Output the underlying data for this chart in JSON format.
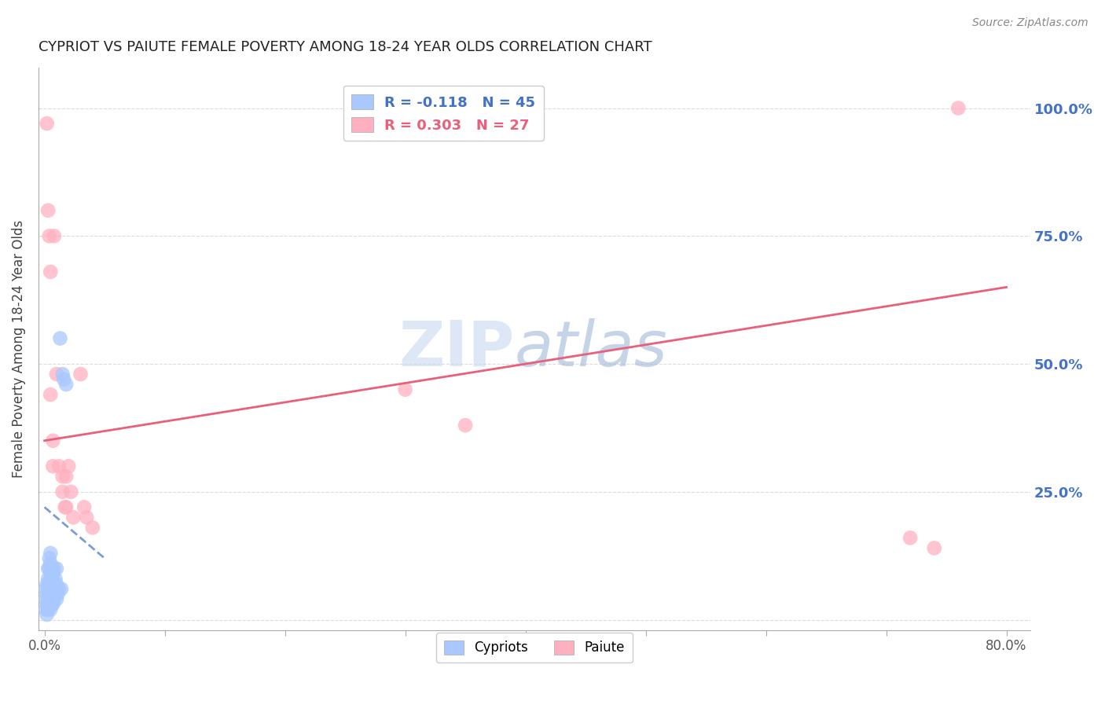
{
  "title": "CYPRIOT VS PAIUTE FEMALE POVERTY AMONG 18-24 YEAR OLDS CORRELATION CHART",
  "source": "Source: ZipAtlas.com",
  "ylabel": "Female Poverty Among 18-24 Year Olds",
  "cypriot_R": -0.118,
  "cypriot_N": 45,
  "paiute_R": 0.303,
  "paiute_N": 27,
  "cypriot_color": "#A8C8FF",
  "paiute_color": "#FFB0C0",
  "cypriot_line_color": "#4472C4",
  "paiute_line_color": "#E8607A",
  "watermark_zip": "ZIP",
  "watermark_atlas": "atlas",
  "background_color": "#FFFFFF",
  "grid_color": "#CCCCCC",
  "legend_label_cypriot": "Cypriots",
  "legend_label_paiute": "Paiute",
  "cypriot_x": [
    0.001,
    0.001,
    0.001,
    0.002,
    0.002,
    0.002,
    0.002,
    0.003,
    0.003,
    0.003,
    0.003,
    0.003,
    0.004,
    0.004,
    0.004,
    0.004,
    0.004,
    0.005,
    0.005,
    0.005,
    0.005,
    0.005,
    0.005,
    0.006,
    0.006,
    0.006,
    0.006,
    0.007,
    0.007,
    0.007,
    0.008,
    0.008,
    0.008,
    0.009,
    0.009,
    0.01,
    0.01,
    0.01,
    0.011,
    0.012,
    0.013,
    0.014,
    0.015,
    0.016,
    0.018
  ],
  "cypriot_y": [
    0.02,
    0.04,
    0.06,
    0.01,
    0.03,
    0.05,
    0.07,
    0.02,
    0.04,
    0.06,
    0.08,
    0.1,
    0.03,
    0.05,
    0.07,
    0.1,
    0.12,
    0.02,
    0.04,
    0.06,
    0.08,
    0.11,
    0.13,
    0.03,
    0.05,
    0.08,
    0.1,
    0.03,
    0.06,
    0.09,
    0.04,
    0.07,
    0.1,
    0.05,
    0.08,
    0.04,
    0.07,
    0.1,
    0.05,
    0.06,
    0.55,
    0.06,
    0.48,
    0.47,
    0.46
  ],
  "paiute_x": [
    0.002,
    0.003,
    0.004,
    0.005,
    0.005,
    0.007,
    0.007,
    0.008,
    0.01,
    0.012,
    0.015,
    0.015,
    0.017,
    0.018,
    0.018,
    0.02,
    0.022,
    0.024,
    0.03,
    0.033,
    0.035,
    0.04,
    0.3,
    0.35,
    0.72,
    0.74,
    0.76
  ],
  "paiute_y": [
    0.97,
    0.8,
    0.75,
    0.68,
    0.44,
    0.3,
    0.35,
    0.75,
    0.48,
    0.3,
    0.28,
    0.25,
    0.22,
    0.28,
    0.22,
    0.3,
    0.25,
    0.2,
    0.48,
    0.22,
    0.2,
    0.18,
    0.45,
    0.38,
    0.16,
    0.14,
    1.0
  ],
  "xlim": [
    -0.005,
    0.82
  ],
  "ylim": [
    -0.02,
    1.08
  ],
  "x_tick_positions": [
    0.0,
    0.1,
    0.2,
    0.3,
    0.4,
    0.5,
    0.6,
    0.7,
    0.8
  ],
  "x_tick_labels": [
    "0.0%",
    "",
    "",
    "",
    "",
    "",
    "",
    "",
    "80.0%"
  ],
  "y_tick_positions": [
    0.0,
    0.25,
    0.5,
    0.75,
    1.0
  ],
  "y_tick_labels_right": [
    "",
    "25.0%",
    "50.0%",
    "75.0%",
    "100.0%"
  ],
  "paiute_line_x0": 0.0,
  "paiute_line_y0": 0.35,
  "paiute_line_x1": 0.8,
  "paiute_line_y1": 0.65,
  "cypriot_line_x0": 0.0,
  "cypriot_line_y0": 0.22,
  "cypriot_line_x1": 0.05,
  "cypriot_line_y1": 0.12
}
